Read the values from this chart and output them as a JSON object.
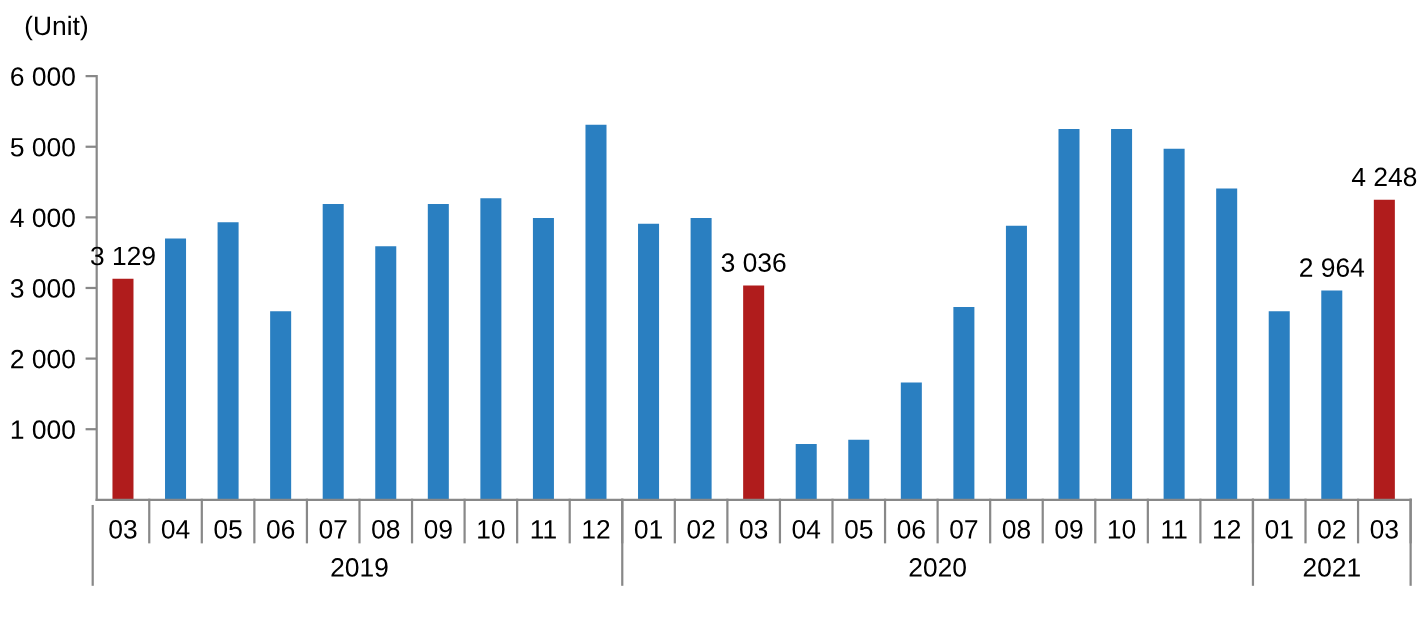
{
  "chart_data": {
    "type": "bar",
    "ylabel": "(Unit)",
    "categories": [
      "03",
      "04",
      "05",
      "06",
      "07",
      "08",
      "09",
      "10",
      "11",
      "12",
      "01",
      "02",
      "03",
      "04",
      "05",
      "06",
      "07",
      "08",
      "09",
      "10",
      "11",
      "12",
      "01",
      "02",
      "03"
    ],
    "values": [
      3129,
      3700,
      3930,
      2670,
      4190,
      3590,
      4190,
      4270,
      3990,
      5310,
      3910,
      3990,
      3036,
      790,
      850,
      1660,
      2730,
      3880,
      5250,
      5250,
      4970,
      4410,
      2670,
      2964,
      4248
    ],
    "colors": [
      "#b01c1c",
      "#2a7fc1",
      "#2a7fc1",
      "#2a7fc1",
      "#2a7fc1",
      "#2a7fc1",
      "#2a7fc1",
      "#2a7fc1",
      "#2a7fc1",
      "#2a7fc1",
      "#2a7fc1",
      "#2a7fc1",
      "#b01c1c",
      "#2a7fc1",
      "#2a7fc1",
      "#2a7fc1",
      "#2a7fc1",
      "#2a7fc1",
      "#2a7fc1",
      "#2a7fc1",
      "#2a7fc1",
      "#2a7fc1",
      "#2a7fc1",
      "#2a7fc1",
      "#b01c1c"
    ],
    "value_labels": [
      "3 129",
      null,
      null,
      null,
      null,
      null,
      null,
      null,
      null,
      null,
      null,
      null,
      "3 036",
      null,
      null,
      null,
      null,
      null,
      null,
      null,
      null,
      null,
      null,
      "2 964",
      "4 248"
    ],
    "annotations": [
      "2019",
      "2020",
      "2021"
    ],
    "ylim": [
      0,
      6000
    ],
    "yticks": [
      {
        "value": 1000,
        "label": "1 000"
      },
      {
        "value": 2000,
        "label": "2 000"
      },
      {
        "value": 3000,
        "label": "3 000"
      },
      {
        "value": 4000,
        "label": "4 000"
      },
      {
        "value": 5000,
        "label": "5 000"
      },
      {
        "value": 6000,
        "label": "6 000"
      }
    ],
    "grid": false,
    "legend": false
  }
}
